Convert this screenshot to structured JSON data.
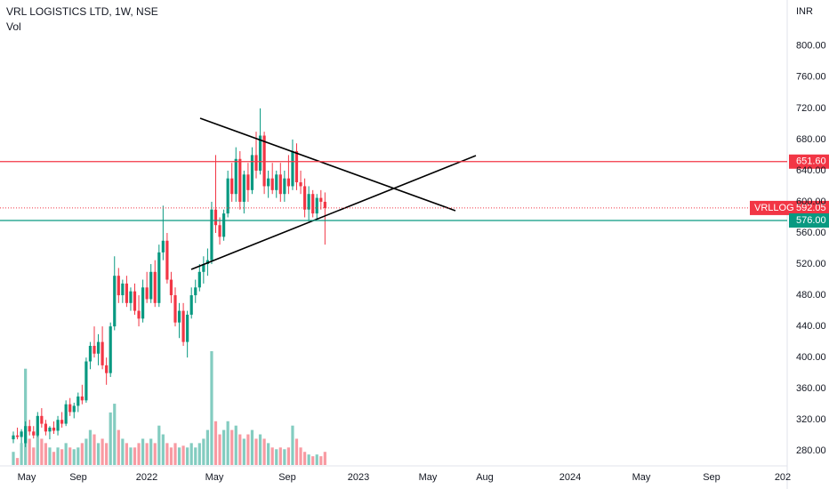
{
  "chart_data": {
    "type": "candlestick",
    "title": "VRL LOGISTICS LTD, 1W, NSE",
    "subtitle": "Vol",
    "y_unit": "INR",
    "up_color": "#089981",
    "down_color": "#f23645",
    "grid": false,
    "ylim": [
      270,
      834
    ],
    "yticks": [
      {
        "value": 280,
        "label": "280.00"
      },
      {
        "value": 320,
        "label": "320.00"
      },
      {
        "value": 360,
        "label": "360.00"
      },
      {
        "value": 400,
        "label": "400.00"
      },
      {
        "value": 440,
        "label": "440.00"
      },
      {
        "value": 480,
        "label": "480.00"
      },
      {
        "value": 520,
        "label": "520.00"
      },
      {
        "value": 560,
        "label": "560.00"
      },
      {
        "value": 600,
        "label": "600.00"
      },
      {
        "value": 640,
        "label": "640.00"
      },
      {
        "value": 680,
        "label": "680.00"
      },
      {
        "value": 720,
        "label": "720.00"
      },
      {
        "value": 760,
        "label": "760.00"
      },
      {
        "value": 800,
        "label": "800.00"
      }
    ],
    "x_labels": [
      "May",
      "Sep",
      "2022",
      "May",
      "Sep",
      "2023",
      "May",
      "Aug",
      "2024",
      "May",
      "Sep",
      "202"
    ],
    "open": [
      295,
      300,
      298,
      290,
      312,
      305,
      300,
      325,
      315,
      305,
      310,
      306,
      320,
      315,
      340,
      330,
      338,
      350,
      345,
      395,
      415,
      405,
      420,
      390,
      380,
      440,
      505,
      480,
      495,
      470,
      485,
      460,
      450,
      490,
      475,
      510,
      470,
      535,
      550,
      500,
      480,
      445,
      460,
      420,
      455,
      480,
      490,
      510,
      520,
      525,
      590,
      570,
      555,
      585,
      630,
      610,
      655,
      600,
      635,
      615,
      660,
      640,
      685,
      620,
      630,
      615,
      635,
      610,
      630,
      620,
      665,
      625,
      620,
      590,
      610,
      585,
      605,
      600
    ],
    "high": [
      305,
      310,
      308,
      318,
      320,
      312,
      330,
      335,
      320,
      312,
      318,
      325,
      330,
      345,
      348,
      342,
      355,
      365,
      400,
      420,
      440,
      430,
      440,
      400,
      445,
      530,
      515,
      500,
      505,
      490,
      495,
      480,
      500,
      510,
      520,
      525,
      545,
      595,
      560,
      510,
      490,
      470,
      470,
      460,
      490,
      500,
      520,
      530,
      540,
      600,
      660,
      580,
      590,
      640,
      650,
      670,
      665,
      640,
      650,
      670,
      690,
      720,
      690,
      640,
      650,
      640,
      650,
      640,
      660,
      680,
      675,
      640,
      630,
      620,
      615,
      610,
      615,
      612
    ],
    "low": [
      290,
      295,
      290,
      285,
      300,
      296,
      298,
      310,
      300,
      295,
      302,
      300,
      310,
      312,
      325,
      322,
      330,
      340,
      342,
      385,
      400,
      390,
      385,
      365,
      375,
      435,
      470,
      470,
      465,
      460,
      455,
      440,
      445,
      470,
      470,
      465,
      465,
      525,
      495,
      470,
      440,
      425,
      415,
      400,
      450,
      470,
      485,
      495,
      505,
      520,
      560,
      545,
      550,
      580,
      600,
      600,
      590,
      585,
      600,
      610,
      630,
      635,
      610,
      605,
      610,
      605,
      600,
      600,
      610,
      615,
      615,
      610,
      580,
      575,
      580,
      578,
      590,
      545
    ],
    "close": [
      300,
      298,
      305,
      312,
      305,
      300,
      325,
      315,
      305,
      310,
      306,
      320,
      315,
      340,
      330,
      338,
      350,
      345,
      395,
      415,
      405,
      420,
      390,
      380,
      440,
      505,
      480,
      495,
      470,
      485,
      460,
      450,
      490,
      475,
      510,
      470,
      535,
      550,
      500,
      480,
      445,
      460,
      420,
      455,
      480,
      490,
      510,
      520,
      525,
      590,
      570,
      555,
      585,
      630,
      610,
      655,
      600,
      635,
      615,
      660,
      640,
      685,
      620,
      630,
      615,
      635,
      610,
      630,
      620,
      665,
      625,
      620,
      590,
      610,
      585,
      605,
      600,
      592.05
    ],
    "volume": [
      15,
      8,
      25,
      110,
      30,
      20,
      40,
      30,
      25,
      20,
      15,
      20,
      18,
      25,
      20,
      18,
      20,
      25,
      30,
      40,
      35,
      25,
      30,
      25,
      60,
      70,
      40,
      30,
      25,
      20,
      20,
      25,
      30,
      25,
      30,
      25,
      45,
      35,
      25,
      20,
      25,
      20,
      22,
      20,
      25,
      20,
      25,
      30,
      40,
      130,
      50,
      35,
      40,
      50,
      40,
      45,
      35,
      30,
      35,
      40,
      30,
      35,
      30,
      25,
      20,
      18,
      20,
      18,
      20,
      45,
      30,
      20,
      15,
      12,
      10,
      12,
      10,
      15
    ],
    "levels": [
      {
        "value": 651.6,
        "label": "651.60",
        "color": "#f23645"
      },
      {
        "value": 576,
        "label": "576.00",
        "color": "#089981"
      }
    ],
    "price_label": {
      "name": "VRLLOG",
      "value_label": "592.05"
    }
  }
}
